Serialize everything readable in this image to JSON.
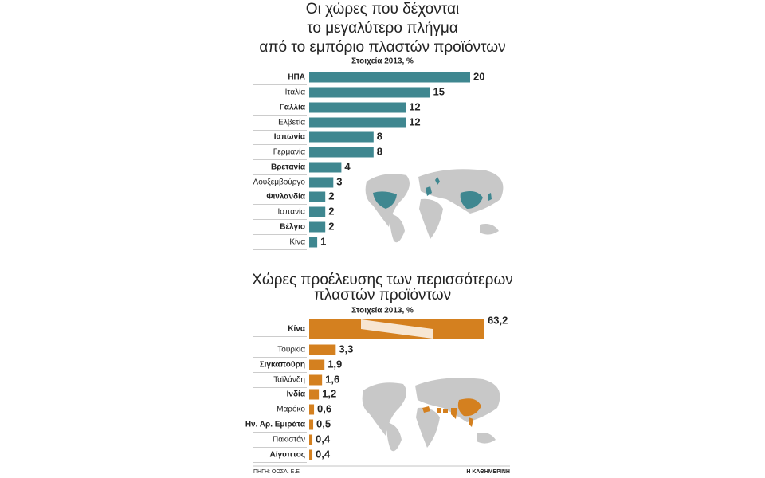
{
  "chart_data": [
    {
      "type": "bar",
      "orientation": "horizontal",
      "title": [
        "Οι χώρες που δέχονται",
        "το μεγαλύτερο πλήγμα",
        "από το εμπόριο πλαστών προϊόντων"
      ],
      "subtitle": "Στοιχεία 2013, %",
      "categories": [
        "ΗΠΑ",
        "Ιταλία",
        "Γαλλία",
        "Ελβετία",
        "Ιαπωνία",
        "Γερμανία",
        "Βρετανία",
        "Λουξεμβούργο",
        "Φινλανδία",
        "Ισπανία",
        "Βέλγιο",
        "Κίνα"
      ],
      "values": [
        20,
        15,
        12,
        12,
        8,
        8,
        4,
        3,
        2,
        2,
        2,
        1
      ],
      "color": "#3f8790"
    },
    {
      "type": "bar",
      "orientation": "horizontal",
      "title": [
        "Χώρες προέλευσης των περισσότερων",
        "πλαστών προϊόντων"
      ],
      "subtitle": "Στοιχεία 2013, %",
      "categories": [
        "Κίνα",
        "Τουρκία",
        "Σιγκαπούρη",
        "Ταϊλάνδη",
        "Ινδία",
        "Μαρόκο",
        "Ην. Αρ. Εμιράτα",
        "Πακιστάν",
        "Αίγυπτος"
      ],
      "values": [
        63.2,
        3.3,
        1.9,
        1.6,
        1.2,
        0.6,
        0.5,
        0.4,
        0.4
      ],
      "value_labels": [
        "63,2",
        "3,3",
        "1,9",
        "1,6",
        "1,2",
        "0,6",
        "0,5",
        "0,4",
        "0,4"
      ],
      "color": "#d4801f"
    }
  ],
  "footer": {
    "source": "ΠΗΓΗ: ΟΟΣΑ, Ε.Ε",
    "publisher": "Η ΚΑΘΗΜΕΡΙΝΗ"
  }
}
